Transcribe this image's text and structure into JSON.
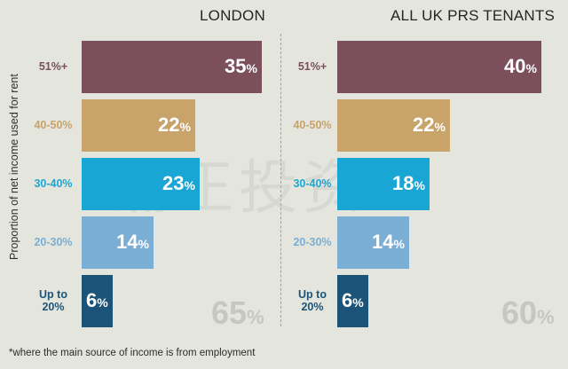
{
  "y_axis_label": "Proportion of net income used for rent",
  "footnote": "*where the main source of income is from employment",
  "watermark": "涌正投资",
  "colors": {
    "51%+": "#7b4f5c",
    "40-50%": "#c8a36a",
    "30-40%": "#1aa6d4",
    "20-30%": "#7aaed5",
    "Up to 20%": "#1c5479"
  },
  "label_colors": {
    "51%+": "#7b4f5c",
    "40-50%": "#c8a36a",
    "30-40%": "#1aa6d4",
    "20-30%": "#7aaed5",
    "Up to 20%": "#1c5479"
  },
  "chart_data": [
    {
      "type": "bar",
      "title": "LONDON",
      "categories": [
        "51%+",
        "40-50%",
        "30-40%",
        "20-30%",
        "Up to 20%"
      ],
      "values": [
        35,
        22,
        23,
        14,
        6
      ],
      "unit": "%",
      "total_label": "65",
      "xlim": [
        0,
        35
      ]
    },
    {
      "type": "bar",
      "title": "ALL UK PRS TENANTS",
      "categories": [
        "51%+",
        "40-50%",
        "30-40%",
        "20-30%",
        "Up to 20%"
      ],
      "values": [
        40,
        22,
        18,
        14,
        6
      ],
      "unit": "%",
      "total_label": "60",
      "xlim": [
        0,
        40
      ]
    }
  ]
}
